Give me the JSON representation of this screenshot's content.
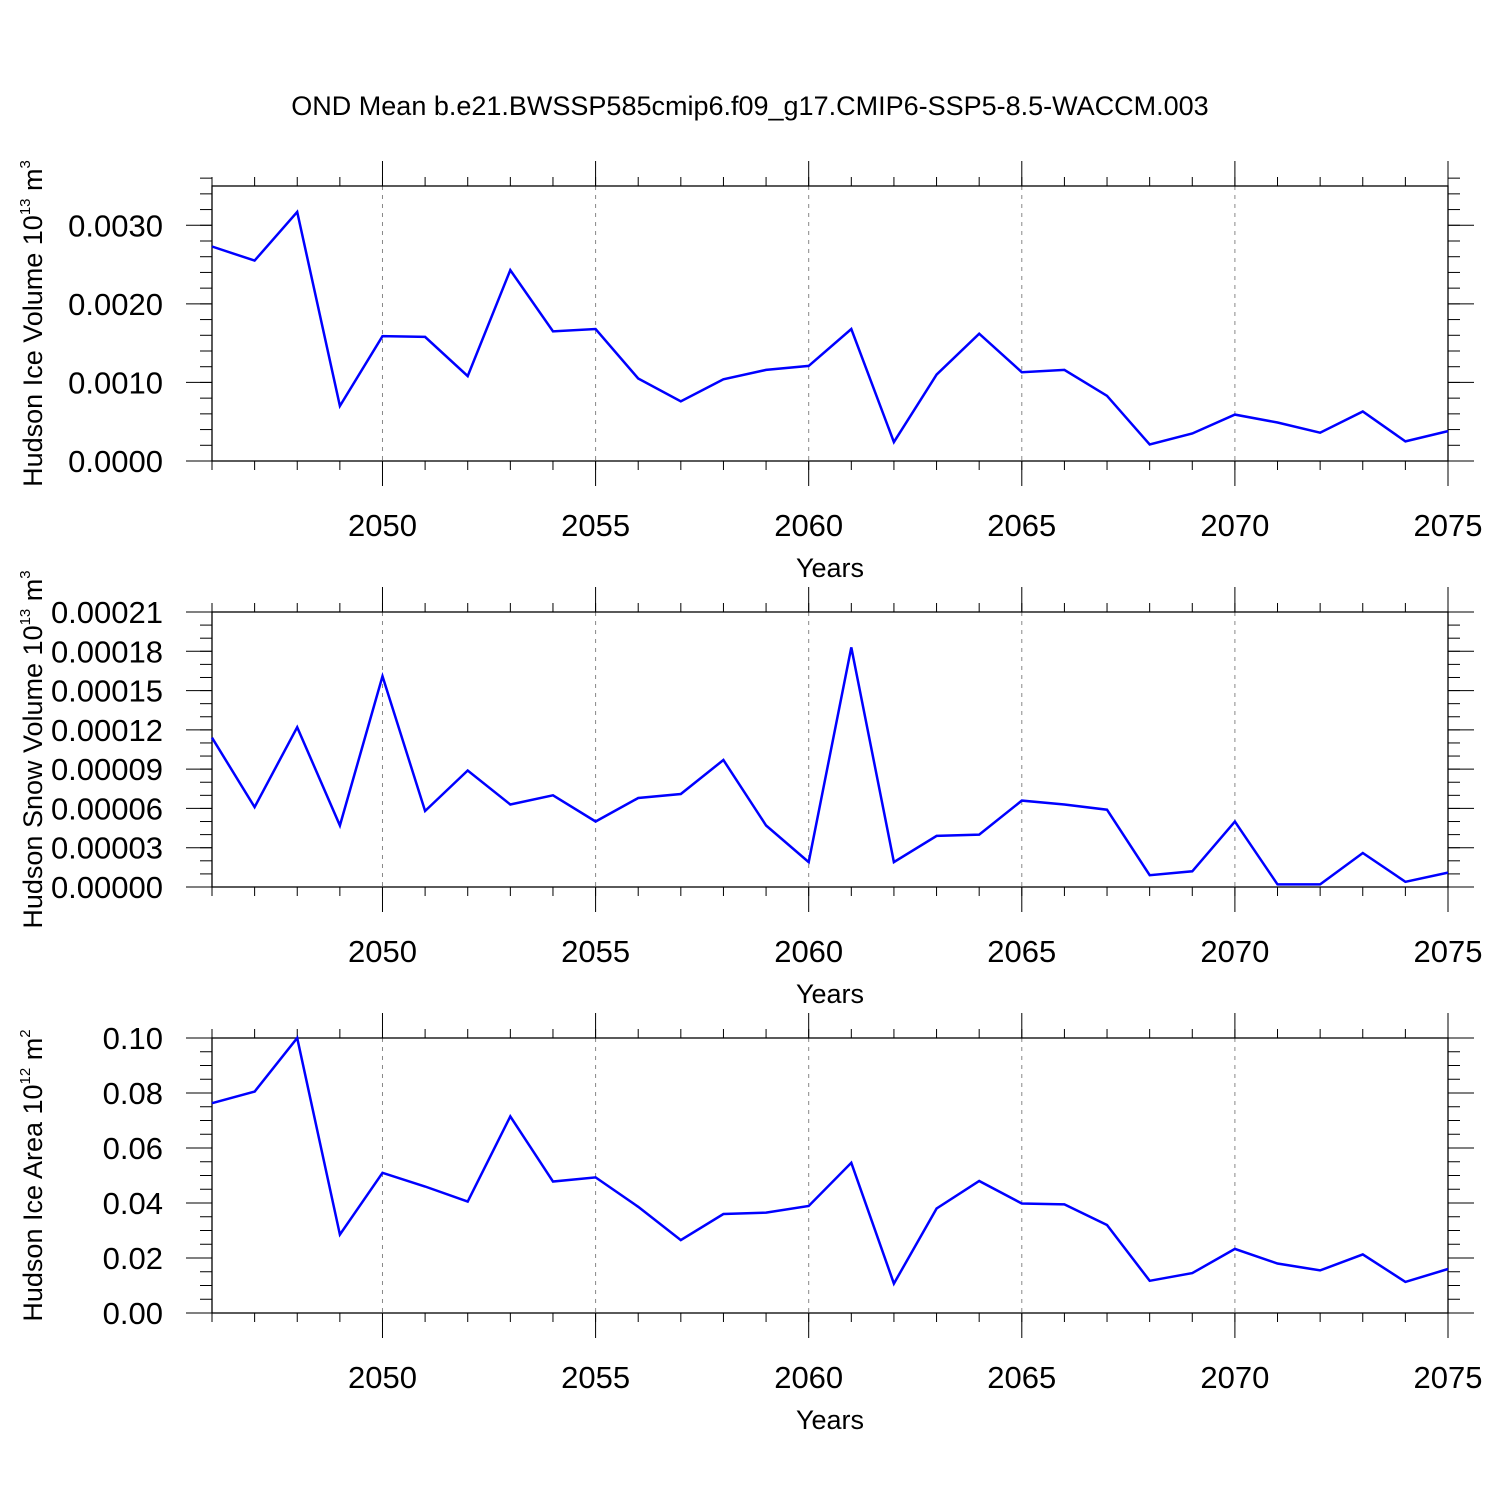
{
  "title": "OND Mean b.e21.BWSSP585cmip6.f09_g17.CMIP6-SSP5-8.5-WACCM.003",
  "colors": {
    "line": "#0000ff",
    "axis": "#000000",
    "grid": "#888888"
  },
  "chart_data": [
    {
      "type": "line",
      "ylabel": {
        "text": "Hudson Ice Volume 10",
        "exponent": "13",
        "unit": " m",
        "unit_exponent": "3"
      },
      "xlabel": "Years",
      "xlim": [
        2046,
        2075
      ],
      "ylim": [
        0,
        0.0035
      ],
      "y_ticks": [
        "0.0000",
        "0.0010",
        "0.0020",
        "0.0030"
      ],
      "y_tick_values": [
        0,
        0.001,
        0.002,
        0.003
      ],
      "y_minor_step": 0.0002,
      "x_ticks": [
        "2050",
        "2055",
        "2060",
        "2065",
        "2070",
        "2075"
      ],
      "x_tick_values": [
        2050,
        2055,
        2060,
        2065,
        2070,
        2075
      ],
      "grid": "dashed vertical at major x ticks",
      "series": [
        {
          "x": [
            2046,
            2047,
            2048,
            2049,
            2050,
            2051,
            2052,
            2053,
            2054,
            2055,
            2056,
            2057,
            2058,
            2059,
            2060,
            2061,
            2062,
            2063,
            2064,
            2065,
            2066,
            2067,
            2068,
            2069,
            2070,
            2071,
            2072,
            2073,
            2074,
            2075
          ],
          "y": [
            0.00273,
            0.00255,
            0.00317,
            0.0007,
            0.00159,
            0.00158,
            0.00108,
            0.00243,
            0.00165,
            0.00168,
            0.00105,
            0.00076,
            0.00104,
            0.00116,
            0.00121,
            0.00168,
            0.00024,
            0.0011,
            0.00162,
            0.00113,
            0.00116,
            0.00083,
            0.00021,
            0.00035,
            0.00059,
            0.00049,
            0.00036,
            0.00063,
            0.00025,
            0.00038
          ]
        }
      ]
    },
    {
      "type": "line",
      "ylabel": {
        "text": "Hudson Snow Volume 10",
        "exponent": "13",
        "unit": " m",
        "unit_exponent": "3"
      },
      "xlabel": "Years",
      "xlim": [
        2046,
        2075
      ],
      "ylim": [
        0,
        0.00021
      ],
      "y_ticks": [
        "0.00000",
        "0.00003",
        "0.00006",
        "0.00009",
        "0.00012",
        "0.00015",
        "0.00018",
        "0.00021"
      ],
      "y_tick_values": [
        0,
        3e-05,
        6e-05,
        9e-05,
        0.00012,
        0.00015,
        0.00018,
        0.00021
      ],
      "y_minor_step": 1e-05,
      "x_ticks": [
        "2050",
        "2055",
        "2060",
        "2065",
        "2070",
        "2075"
      ],
      "x_tick_values": [
        2050,
        2055,
        2060,
        2065,
        2070,
        2075
      ],
      "grid": "dashed vertical at major x ticks",
      "series": [
        {
          "x": [
            2046,
            2047,
            2048,
            2049,
            2050,
            2051,
            2052,
            2053,
            2054,
            2055,
            2056,
            2057,
            2058,
            2059,
            2060,
            2061,
            2062,
            2063,
            2064,
            2065,
            2066,
            2067,
            2068,
            2069,
            2070,
            2071,
            2072,
            2073,
            2074,
            2075
          ],
          "y": [
            0.000114,
            6.1e-05,
            0.000122,
            4.7e-05,
            0.000161,
            5.8e-05,
            8.9e-05,
            6.3e-05,
            7e-05,
            5e-05,
            6.8e-05,
            7.1e-05,
            9.7e-05,
            4.7e-05,
            1.9e-05,
            0.000183,
            1.9e-05,
            3.9e-05,
            4e-05,
            6.6e-05,
            6.3e-05,
            5.9e-05,
            9e-06,
            1.2e-05,
            5e-05,
            2e-06,
            2e-06,
            2.6e-05,
            4e-06,
            1.1e-05
          ]
        }
      ]
    },
    {
      "type": "line",
      "ylabel": {
        "text": "Hudson Ice Area 10",
        "exponent": "12",
        "unit": " m",
        "unit_exponent": "2"
      },
      "xlabel": "Years",
      "xlim": [
        2046,
        2075
      ],
      "ylim": [
        0,
        0.1
      ],
      "y_ticks": [
        "0.00",
        "0.02",
        "0.04",
        "0.06",
        "0.08",
        "0.10"
      ],
      "y_tick_values": [
        0,
        0.02,
        0.04,
        0.06,
        0.08,
        0.1
      ],
      "y_minor_step": 0.005,
      "x_ticks": [
        "2050",
        "2055",
        "2060",
        "2065",
        "2070",
        "2075"
      ],
      "x_tick_values": [
        2050,
        2055,
        2060,
        2065,
        2070,
        2075
      ],
      "grid": "dashed vertical at major x ticks",
      "series": [
        {
          "x": [
            2046,
            2047,
            2048,
            2049,
            2050,
            2051,
            2052,
            2053,
            2054,
            2055,
            2056,
            2057,
            2058,
            2059,
            2060,
            2061,
            2062,
            2063,
            2064,
            2065,
            2066,
            2067,
            2068,
            2069,
            2070,
            2071,
            2072,
            2073,
            2074,
            2075
          ],
          "y": [
            0.0763,
            0.0805,
            0.1,
            0.0285,
            0.051,
            0.046,
            0.0405,
            0.0715,
            0.0478,
            0.0493,
            0.0386,
            0.0265,
            0.036,
            0.0365,
            0.0389,
            0.0546,
            0.0107,
            0.038,
            0.048,
            0.0398,
            0.0395,
            0.032,
            0.0117,
            0.0145,
            0.0233,
            0.018,
            0.0155,
            0.0213,
            0.0113,
            0.016
          ]
        }
      ]
    }
  ]
}
